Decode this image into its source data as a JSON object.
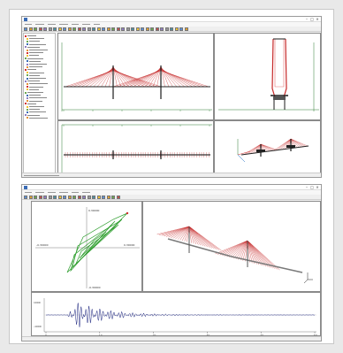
{
  "window1": {
    "status_text": "",
    "colors": {
      "tower": "#1b1b1b",
      "cable": "#c62828",
      "axis_green": "#2e7d32",
      "axis_red": "#d32f2f",
      "axis_blue": "#1565c0"
    },
    "panes": [
      {
        "name": "elevation-view",
        "icons": [
          "cable-stayed-bridge-elevation"
        ]
      },
      {
        "name": "cross-section-view",
        "icons": [
          "tower-cross-section"
        ]
      },
      {
        "name": "plan-view",
        "icons": [
          "bridge-plan"
        ]
      },
      {
        "name": "3d-view",
        "icons": [
          "bridge-3d-model",
          "xyz-axis-icon"
        ]
      }
    ]
  },
  "window2": {
    "plot_labels": {
      "top_value": "0.30000",
      "bottom_value": "-0.30000",
      "left_value": "-0.30000",
      "right_value": "0.30000",
      "wave_y_top": "1000",
      "wave_y_bottom": "-1000",
      "wave_ticks": [
        "0",
        "10",
        "20",
        "30",
        "40",
        "50"
      ]
    },
    "colors": {
      "hysteresis": "#2e9e2e",
      "waveform": "#1a237e",
      "cable": "#c62828",
      "deck": "#7a7a7a"
    },
    "panes": [
      {
        "name": "hysteresis-view",
        "icons": [
          "hysteresis-loop"
        ]
      },
      {
        "name": "3d-response-view",
        "icons": [
          "bridge-3d-response",
          "xyz-axis-icon"
        ]
      },
      {
        "name": "time-history-view",
        "icons": [
          "acceleration-waveform"
        ]
      }
    ]
  }
}
